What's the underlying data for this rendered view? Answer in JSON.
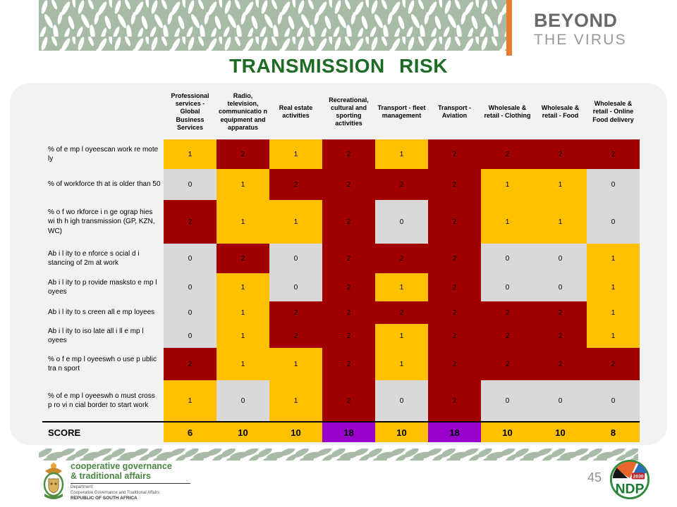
{
  "brand": {
    "line1": "BEYOND",
    "line2": "THE VIRUS"
  },
  "title": "TRANSMISSION RISK",
  "table": {
    "columns": [
      "Professional services - Global Business Services",
      "Radio, television, communicatio n equipment and apparatus",
      "Real estate activities",
      "Recreational, cultural and sporting activities",
      "Transport - fleet management",
      "Transport - Aviation",
      "Wholesale & retail - Clothing",
      "Wholesale & retail - Food",
      "Wholesale & retail - Online Food delivery"
    ],
    "rows": [
      {
        "label": "% of e mp l oyeescan work re mote ly",
        "values": [
          1,
          2,
          1,
          2,
          1,
          2,
          2,
          2,
          2
        ]
      },
      {
        "label": "% of workforce th at is older than 50",
        "values": [
          0,
          1,
          2,
          2,
          2,
          2,
          1,
          1,
          0
        ]
      },
      {
        "label": "% o f wo rkforce i n ge ograp hies wi th h igh transmission (GP, KZN, WC)",
        "values": [
          2,
          1,
          1,
          2,
          0,
          2,
          1,
          1,
          0
        ]
      },
      {
        "label": "Ab i l ity to e nforce s ocial d i stancing of 2m at work",
        "values": [
          0,
          2,
          0,
          2,
          2,
          2,
          0,
          0,
          1
        ]
      },
      {
        "label": "Ab i l ity to p rovide masksto e mp l oyees",
        "values": [
          0,
          1,
          0,
          2,
          1,
          2,
          0,
          0,
          1
        ]
      },
      {
        "label": "Ab i l ity to s creen all e mp loyees",
        "values": [
          0,
          1,
          2,
          2,
          2,
          2,
          2,
          2,
          1
        ]
      },
      {
        "label": "Ab i l ity to iso late all i ll e mp l oyees",
        "values": [
          0,
          1,
          2,
          2,
          1,
          2,
          2,
          2,
          1
        ]
      },
      {
        "label": "% o f e mp l oyeeswh o use p ublic tra n sport",
        "values": [
          2,
          1,
          1,
          2,
          1,
          2,
          2,
          2,
          2
        ]
      },
      {
        "label": "% of e mp l oyeeswh o must cross p ro vi n cial border to start work",
        "values": [
          1,
          0,
          1,
          2,
          0,
          2,
          0,
          0,
          0
        ]
      }
    ],
    "value_colors": {
      "0": "#D9D9D9",
      "1": "#FFC000",
      "2": "#A00000"
    },
    "score": {
      "label": "SCORE",
      "values": [
        6,
        10,
        10,
        18,
        10,
        18,
        10,
        10,
        8
      ],
      "cell_colors": [
        "#FFC000",
        "#FFC000",
        "#FFC000",
        "#9900CC",
        "#FFC000",
        "#9900CC",
        "#FFC000",
        "#FFC000",
        "#FFC000"
      ]
    }
  },
  "chart_data": {
    "type": "heatmap",
    "title": "TRANSMISSION RISK",
    "columns": [
      "Professional services - Global Business Services",
      "Radio, television, communication equipment and apparatus",
      "Real estate activities",
      "Recreational, cultural and sporting activities",
      "Transport - fleet management",
      "Transport - Aviation",
      "Wholesale & retail - Clothing",
      "Wholesale & retail - Food",
      "Wholesale & retail - Online Food delivery"
    ],
    "rows": [
      "% of employees can work remotely",
      "% of workforce that is older than 50",
      "% of workforce in geographies with high transmission (GP, KZN, WC)",
      "Ability to enforce social distancing of 2m at work",
      "Ability to provide masks to employees",
      "Ability to screen all employees",
      "Ability to isolate all ill employees",
      "% of employees who use public transport",
      "% of employees who must cross provincial border to start work"
    ],
    "values": [
      [
        1,
        2,
        1,
        2,
        1,
        2,
        2,
        2,
        2
      ],
      [
        0,
        1,
        2,
        2,
        2,
        2,
        1,
        1,
        0
      ],
      [
        2,
        1,
        1,
        2,
        0,
        2,
        1,
        1,
        0
      ],
      [
        0,
        2,
        0,
        2,
        2,
        2,
        0,
        0,
        1
      ],
      [
        0,
        1,
        0,
        2,
        1,
        2,
        0,
        0,
        1
      ],
      [
        0,
        1,
        2,
        2,
        2,
        2,
        2,
        2,
        1
      ],
      [
        0,
        1,
        2,
        2,
        1,
        2,
        2,
        2,
        1
      ],
      [
        2,
        1,
        1,
        2,
        1,
        2,
        2,
        2,
        2
      ],
      [
        1,
        0,
        1,
        2,
        0,
        2,
        0,
        0,
        0
      ]
    ],
    "score_row": {
      "label": "SCORE",
      "values": [
        6,
        10,
        10,
        18,
        10,
        18,
        10,
        10,
        8
      ]
    },
    "cell_color_by_value": {
      "0": "#D9D9D9",
      "1": "#FFC000",
      "2": "#A00000"
    },
    "score_highlight_color": "#9900CC",
    "score_default_color": "#FFC000"
  },
  "footer": {
    "department": {
      "name_line1": "cooperative governance",
      "name_line2": "& traditional affairs",
      "sub_line1": "Department:",
      "sub_line2": "Cooperative Governance and Traditional Affairs",
      "sub_line3": "REPUBLIC OF SOUTH AFRICA"
    },
    "page_number": "45",
    "ndp": {
      "acronym": "NDP",
      "year": "2030"
    }
  },
  "colors": {
    "accent_orange": "#E87E2B",
    "title_green": "#1D6B24",
    "pattern_sage": "#A7BBA6",
    "card_bg": "#F2F2F2"
  }
}
